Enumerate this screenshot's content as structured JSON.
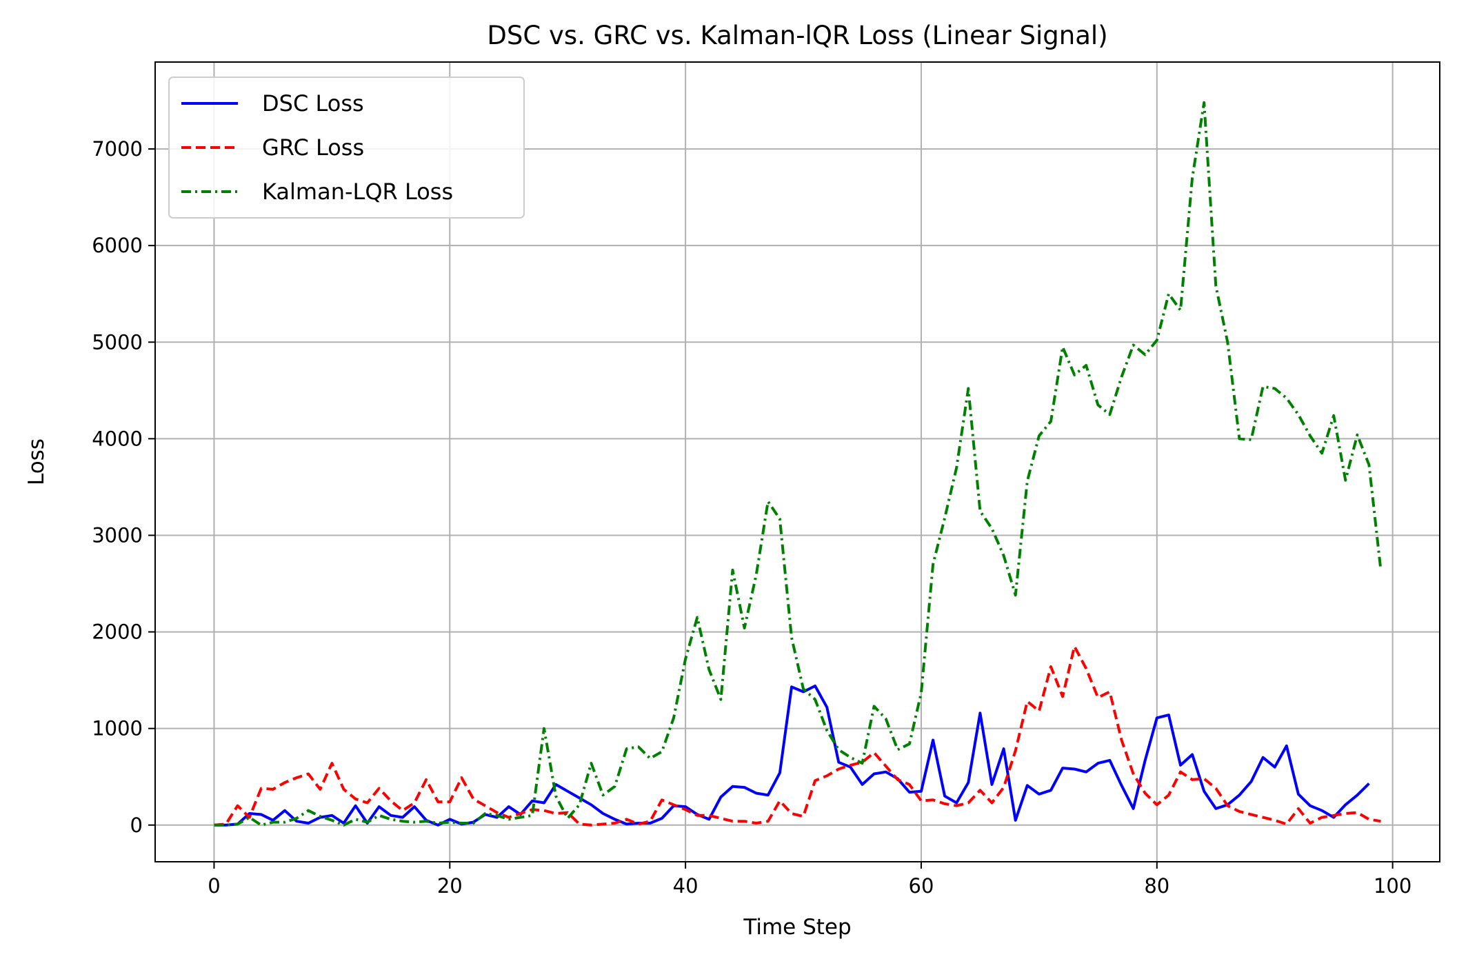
{
  "chart_data": {
    "type": "line",
    "title": "DSC vs. GRC vs. Kalman-lQR Loss (Linear Signal)",
    "xlabel": "Time Step",
    "ylabel": "Loss",
    "xlim": [
      -5,
      104
    ],
    "ylim": [
      -380,
      7900
    ],
    "xticks": [
      0,
      20,
      40,
      60,
      80,
      100
    ],
    "yticks": [
      0,
      1000,
      2000,
      3000,
      4000,
      5000,
      6000,
      7000
    ],
    "grid": true,
    "legend_position": "upper-left",
    "series": [
      {
        "name": "DSC Loss",
        "color": "#0000ff",
        "style": "solid",
        "values": [
          0,
          0,
          10,
          120,
          110,
          50,
          150,
          40,
          20,
          80,
          100,
          20,
          200,
          20,
          190,
          100,
          80,
          190,
          50,
          0,
          60,
          10,
          30,
          110,
          80,
          190,
          110,
          250,
          230,
          420,
          350,
          280,
          210,
          120,
          60,
          10,
          20,
          20,
          70,
          200,
          190,
          110,
          60,
          290,
          400,
          390,
          330,
          310,
          540,
          1430,
          1380,
          1440,
          1220,
          650,
          600,
          420,
          530,
          550,
          480,
          340,
          350,
          880,
          300,
          230,
          440,
          1160,
          420,
          790,
          50,
          410,
          320,
          360,
          590,
          580,
          550,
          640,
          670,
          410,
          170,
          670,
          1110,
          1140,
          620,
          730,
          350,
          170,
          210,
          310,
          450,
          700,
          600,
          820,
          320,
          200,
          150,
          80,
          210,
          310,
          430
        ]
      },
      {
        "name": "GRC Loss",
        "color": "#ff0000",
        "style": "dashed",
        "values": [
          0,
          10,
          200,
          80,
          380,
          370,
          440,
          490,
          530,
          370,
          640,
          370,
          270,
          230,
          380,
          250,
          150,
          230,
          470,
          240,
          240,
          490,
          270,
          200,
          130,
          80,
          120,
          160,
          150,
          120,
          130,
          10,
          0,
          10,
          20,
          60,
          10,
          40,
          260,
          210,
          160,
          100,
          100,
          70,
          40,
          40,
          20,
          40,
          250,
          120,
          90,
          460,
          510,
          580,
          620,
          650,
          750,
          610,
          470,
          420,
          250,
          260,
          220,
          200,
          230,
          360,
          230,
          390,
          770,
          1280,
          1180,
          1640,
          1330,
          1850,
          1620,
          1320,
          1380,
          880,
          530,
          330,
          210,
          310,
          550,
          470,
          480,
          380,
          200,
          140,
          110,
          80,
          50,
          10,
          170,
          20,
          80,
          100,
          120,
          130,
          60,
          40
        ]
      },
      {
        "name": "Kalman-LQR Loss",
        "color": "#008000",
        "style": "dashdot",
        "values": [
          0,
          0,
          10,
          80,
          0,
          30,
          30,
          70,
          150,
          90,
          50,
          0,
          60,
          30,
          100,
          60,
          40,
          30,
          40,
          20,
          30,
          20,
          20,
          120,
          100,
          60,
          80,
          100,
          1000,
          300,
          70,
          210,
          640,
          310,
          400,
          790,
          810,
          690,
          760,
          1110,
          1720,
          2150,
          1610,
          1300,
          2640,
          2040,
          2590,
          3350,
          3170,
          1940,
          1410,
          1300,
          980,
          780,
          700,
          640,
          1230,
          1100,
          780,
          840,
          1370,
          2700,
          3180,
          3700,
          4520,
          3250,
          3070,
          2790,
          2380,
          3560,
          4030,
          4180,
          4950,
          4660,
          4760,
          4350,
          4250,
          4640,
          4970,
          4870,
          5020,
          5500,
          5330,
          6700,
          7480,
          5580,
          5000,
          4000,
          3990,
          4540,
          4520,
          4420,
          4250,
          4030,
          3850,
          4240,
          3570,
          4040,
          3730,
          2640
        ]
      }
    ]
  }
}
